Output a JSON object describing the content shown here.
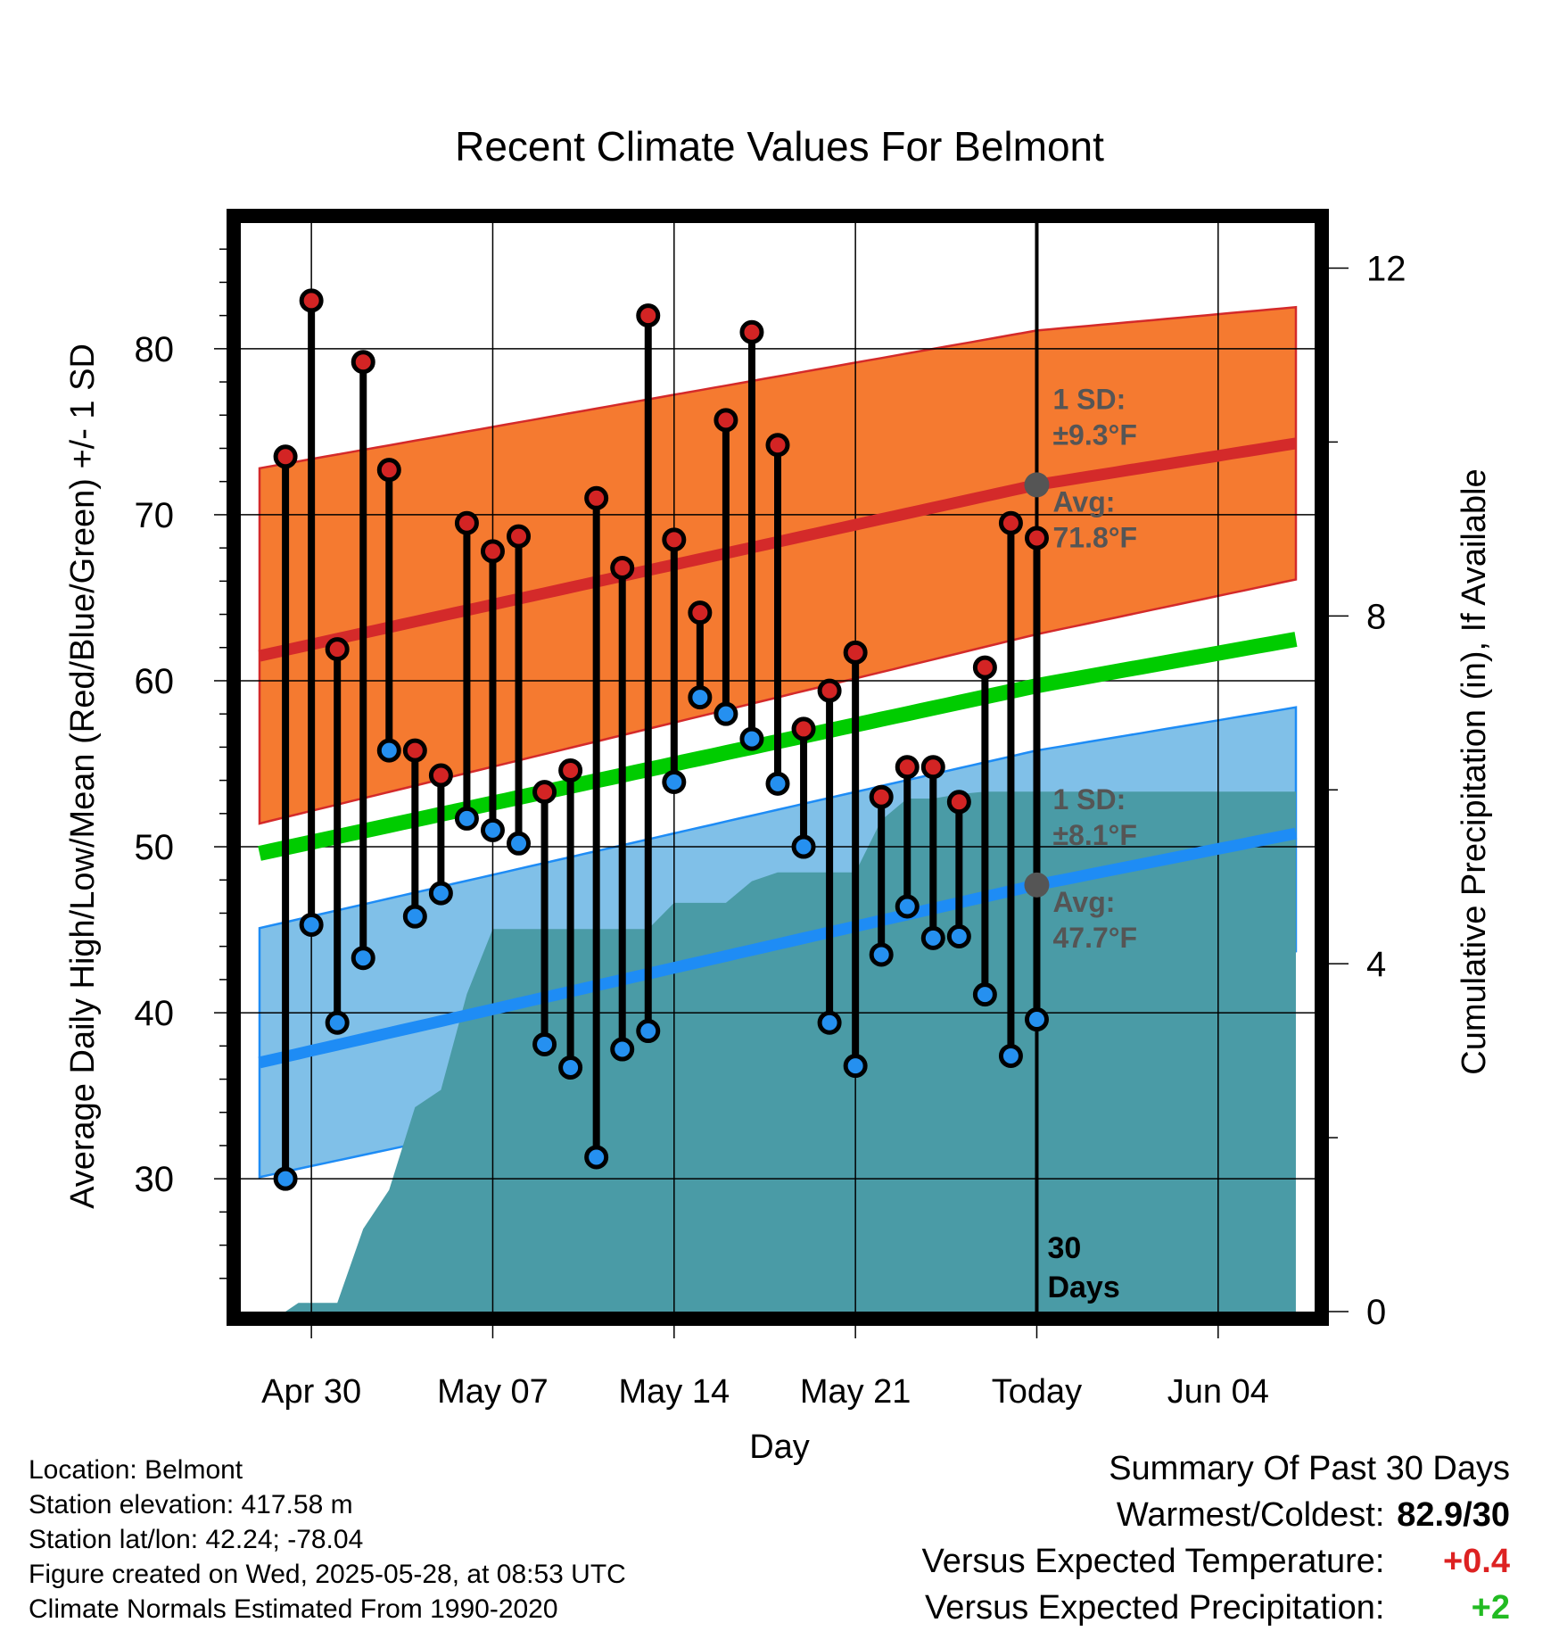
{
  "chart_data": {
    "type": "line",
    "title": "Recent Climate Values For Belmont",
    "xlabel": "Day",
    "ylabel": "Average Daily High/Low/Mean (Red/Blue/Green) +/- 1 SD",
    "y2label": "Cumulative Precipitation (in), If Available",
    "x_tick_labels": [
      "Apr 30",
      "May 07",
      "May 14",
      "May 21",
      "Today",
      "Jun 04"
    ],
    "x_tick_days": [
      2,
      9,
      16,
      23,
      30,
      37
    ],
    "y_ticks": [
      30,
      40,
      50,
      60,
      70,
      80
    ],
    "y2_ticks": [
      0,
      4,
      8,
      12
    ],
    "ylim": [
      22,
      88
    ],
    "y2lim": [
      0,
      12.6
    ],
    "xlim": [
      -1,
      41
    ],
    "today_day": 30,
    "today_label": [
      "30",
      "Days"
    ],
    "grid": true,
    "colors": {
      "high_band": "#f57a30",
      "high_avg": "#d42a2a",
      "low_band": "#80c0e8",
      "low_avg": "#1e8cf5",
      "mean_line": "#00cc00",
      "precip": "#4a9ba6",
      "high_dot": "#d32424",
      "low_dot": "#2590f0",
      "avg_dot": "#555555",
      "annotation": "#555555"
    },
    "normal_high": {
      "day": [
        0,
        30,
        40
      ],
      "avg": [
        61.5,
        71.8,
        74.3
      ],
      "upper": [
        72.8,
        81.1,
        82.5
      ],
      "lower": [
        51.4,
        62.8,
        66.1
      ]
    },
    "normal_low": {
      "day": [
        0,
        30,
        40
      ],
      "avg": [
        37.0,
        47.7,
        50.8
      ],
      "upper": [
        45.1,
        55.8,
        58.4
      ],
      "lower": [
        30.1,
        40.1,
        43.7
      ]
    },
    "normal_mean": {
      "day": [
        0,
        30,
        40
      ],
      "values": [
        49.6,
        59.7,
        62.5
      ]
    },
    "daily": [
      {
        "day": 1,
        "high": 73.5,
        "low": 30.0
      },
      {
        "day": 2,
        "high": 82.9,
        "low": 45.3
      },
      {
        "day": 3,
        "high": 61.9,
        "low": 39.4
      },
      {
        "day": 4,
        "high": 79.2,
        "low": 43.3
      },
      {
        "day": 5,
        "high": 72.7,
        "low": 55.8
      },
      {
        "day": 6,
        "high": 55.8,
        "low": 45.8
      },
      {
        "day": 7,
        "high": 54.3,
        "low": 47.2
      },
      {
        "day": 8,
        "high": 69.5,
        "low": 51.7
      },
      {
        "day": 9,
        "high": 67.8,
        "low": 51.0
      },
      {
        "day": 10,
        "high": 68.7,
        "low": 50.2
      },
      {
        "day": 11,
        "high": 53.3,
        "low": 38.1
      },
      {
        "day": 12,
        "high": 54.6,
        "low": 36.7
      },
      {
        "day": 13,
        "high": 71.0,
        "low": 31.3
      },
      {
        "day": 14,
        "high": 66.8,
        "low": 37.8
      },
      {
        "day": 15,
        "high": 82.0,
        "low": 38.9
      },
      {
        "day": 16,
        "high": 68.5,
        "low": 53.9
      },
      {
        "day": 17,
        "high": 64.1,
        "low": 59.0
      },
      {
        "day": 18,
        "high": 75.7,
        "low": 58.0
      },
      {
        "day": 19,
        "high": 81.0,
        "low": 56.5
      },
      {
        "day": 20,
        "high": 74.2,
        "low": 53.8
      },
      {
        "day": 21,
        "high": 57.1,
        "low": 50.0
      },
      {
        "day": 22,
        "high": 59.4,
        "low": 39.4
      },
      {
        "day": 23,
        "high": 61.7,
        "low": 36.8
      },
      {
        "day": 24,
        "high": 53.0,
        "low": 43.5
      },
      {
        "day": 25,
        "high": 54.8,
        "low": 46.4
      },
      {
        "day": 26,
        "high": 54.8,
        "low": 44.5
      },
      {
        "day": 27,
        "high": 52.7,
        "low": 44.6
      },
      {
        "day": 28,
        "high": 60.8,
        "low": 41.1
      },
      {
        "day": 29,
        "high": 69.5,
        "low": 37.4
      },
      {
        "day": 30,
        "high": 68.6,
        "low": 39.6
      }
    ],
    "precip": {
      "day": [
        0,
        1,
        1.5,
        2,
        2.5,
        3,
        4,
        5,
        6,
        7,
        8,
        9,
        10,
        11,
        12,
        13,
        14,
        15,
        16,
        17,
        18,
        19,
        20,
        21,
        22,
        23,
        24,
        25,
        26,
        27,
        28,
        29,
        30,
        31,
        40
      ],
      "in": [
        0,
        0,
        0.1,
        0.1,
        0.1,
        0.1,
        0.95,
        1.4,
        2.35,
        2.55,
        3.65,
        4.4,
        4.4,
        4.4,
        4.4,
        4.4,
        4.4,
        4.4,
        4.7,
        4.7,
        4.7,
        4.95,
        5.05,
        5.05,
        5.05,
        5.05,
        5.65,
        5.9,
        5.9,
        5.95,
        5.98,
        5.98,
        5.98,
        5.98,
        5.98
      ]
    },
    "annotations": {
      "high_sd_label": "1 SD:",
      "high_sd_value": "±9.3°F",
      "high_avg_label": "Avg:",
      "high_avg_value": "71.8°F",
      "low_sd_label": "1 SD:",
      "low_sd_value": "±8.1°F",
      "low_avg_label": "Avg:",
      "low_avg_value": "47.7°F"
    }
  },
  "info": {
    "location": "Location: Belmont",
    "elevation": "Station elevation: 417.58 m",
    "latlon": "Station lat/lon: 42.24; -78.04",
    "created": "Figure created on Wed, 2025-05-28, at 08:53 UTC",
    "normals": "Climate Normals Estimated From 1990-2020"
  },
  "summary": {
    "title": "Summary Of Past 30 Days",
    "warmest_coldest_label": "Warmest/Coldest:",
    "warmest_coldest_value": "82.9/30",
    "temp_label": "Versus Expected Temperature:",
    "temp_value": "+0.4",
    "temp_color": "#dd2222",
    "precip_label": "Versus Expected Precipitation:",
    "precip_value": "+2",
    "precip_color": "#22bb22"
  }
}
